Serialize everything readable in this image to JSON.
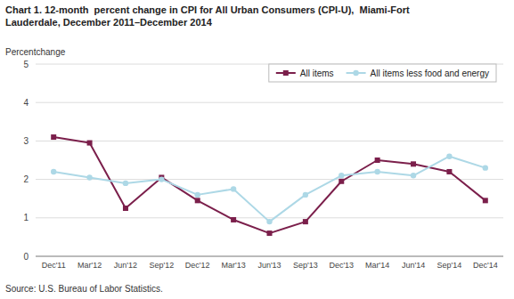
{
  "chart_data": {
    "type": "line",
    "title": "Chart 1. 12-month  percent change in CPI for All Urban Consumers (CPI-U),  Miami-Fort\nLauderdale, December 2011–December 2014",
    "y_label": "Percentchange",
    "source": "Source: U.S. Bureau of Labor Statistics.",
    "categories": [
      "Dec'11",
      "Mar'12",
      "Jun'12",
      "Sep'12",
      "Dec'12",
      "Mar'13",
      "Jun'13",
      "Sep'13",
      "Dec'13",
      "Mar'14",
      "Jun'14",
      "Sep'14",
      "Dec'14"
    ],
    "series": [
      {
        "name": "All items",
        "color": "#7B1F4B",
        "marker": "square",
        "values": [
          3.1,
          2.95,
          1.25,
          2.05,
          1.45,
          0.95,
          0.6,
          0.9,
          1.95,
          2.5,
          2.4,
          2.2,
          1.45
        ]
      },
      {
        "name": "All items less food and energy",
        "color": "#ADD8E6",
        "marker": "circle",
        "values": [
          2.2,
          2.05,
          1.9,
          2.0,
          1.6,
          1.75,
          0.9,
          1.6,
          2.1,
          2.2,
          2.1,
          2.6,
          2.3
        ]
      }
    ],
    "ylim": [
      0,
      5
    ],
    "yticks": [
      0,
      1,
      2,
      3,
      4,
      5
    ],
    "grid": true,
    "legend": "upper right"
  }
}
